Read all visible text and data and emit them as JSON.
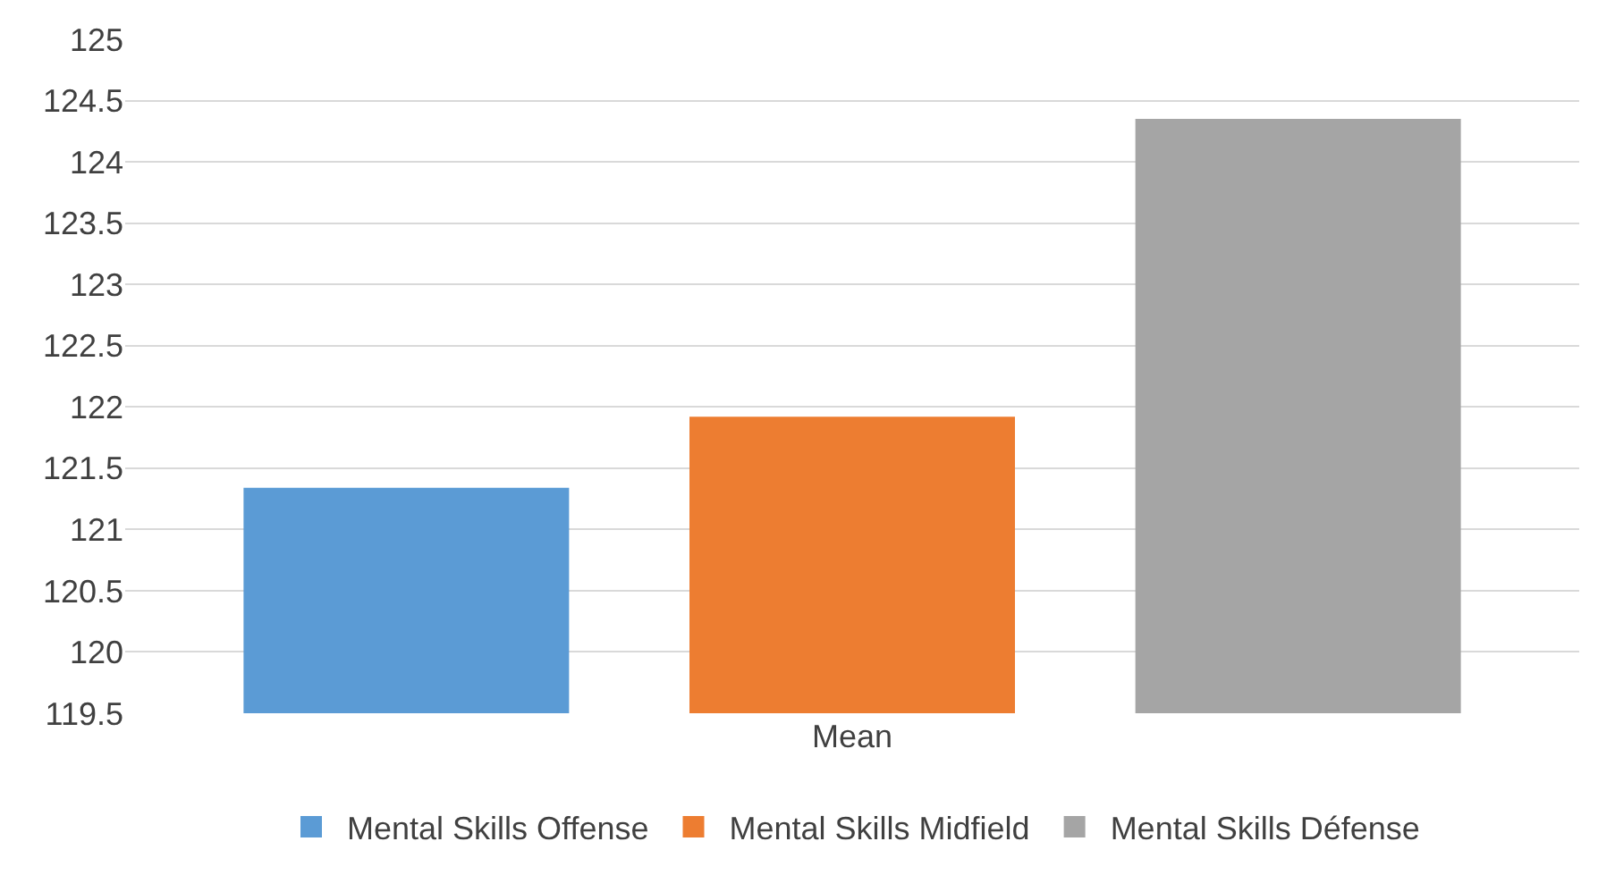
{
  "chart_data": {
    "type": "bar",
    "categories": [
      "Mean"
    ],
    "series": [
      {
        "name": "Mental Skills Offense",
        "color": "#5b9bd5",
        "values": [
          121.34
        ]
      },
      {
        "name": "Mental Skills Midfield",
        "color": "#ed7d31",
        "values": [
          121.92
        ]
      },
      {
        "name": "Mental Skills Défense",
        "color": "#a5a5a5",
        "values": [
          124.35
        ]
      }
    ],
    "ylim": [
      119.5,
      125
    ],
    "yticks": [
      119.5,
      120,
      120.5,
      121,
      121.5,
      122,
      122.5,
      123,
      123.5,
      124,
      124.5,
      125
    ],
    "grid": "y",
    "legend": "bottom"
  }
}
